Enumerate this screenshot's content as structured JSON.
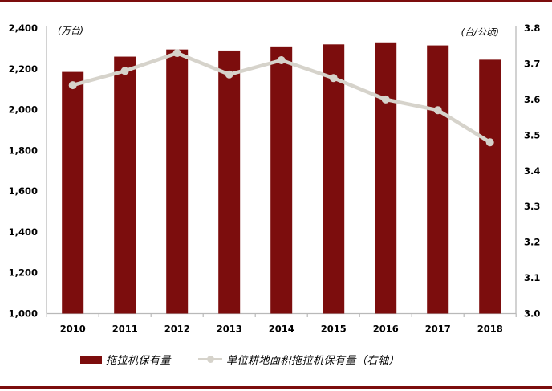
{
  "page": {
    "background": "#ffffff",
    "top_band_color": "#7c0d0d",
    "bottom_band_color": "#7c0d0d"
  },
  "chart_data": {
    "type": "bar",
    "subtype": "bar+line dual axis",
    "categories": [
      "2010",
      "2011",
      "2012",
      "2013",
      "2014",
      "2015",
      "2016",
      "2017",
      "2018"
    ],
    "series": [
      {
        "name": "拖拉机保有量",
        "type": "bar",
        "axis": "left",
        "color": "#7c0d0d",
        "values": [
          2185,
          2260,
          2295,
          2290,
          2310,
          2320,
          2330,
          2315,
          2245
        ]
      },
      {
        "name": "单位耕地面积拖拉机保有量（右轴）",
        "type": "line",
        "axis": "right",
        "color": "#d6d3cb",
        "values": [
          3.64,
          3.68,
          3.73,
          3.67,
          3.71,
          3.66,
          3.6,
          3.57,
          3.48
        ]
      }
    ],
    "left_axis": {
      "unit_label": "(万台)",
      "min": 1000,
      "max": 2400,
      "tick_step": 200,
      "tick_labels": [
        "2,400",
        "2,200",
        "2,000",
        "1,800",
        "1,600",
        "1,400",
        "1,200",
        "1,000"
      ]
    },
    "right_axis": {
      "unit_label": "(台/公顷)",
      "min": 3.0,
      "max": 3.8,
      "tick_step": 0.1,
      "tick_labels": [
        "3.8",
        "3.7",
        "3.6",
        "3.5",
        "3.4",
        "3.3",
        "3.2",
        "3.1",
        "3.0"
      ]
    },
    "legend": [
      {
        "label": "拖拉机保有量",
        "swatch": "bar"
      },
      {
        "label": "单位耕地面积拖拉机保有量（右轴）",
        "swatch": "line"
      }
    ],
    "grid": false,
    "legend_position": "bottom",
    "axis_line_color": "#b9b9b9",
    "tick_text_color": "#000000"
  }
}
